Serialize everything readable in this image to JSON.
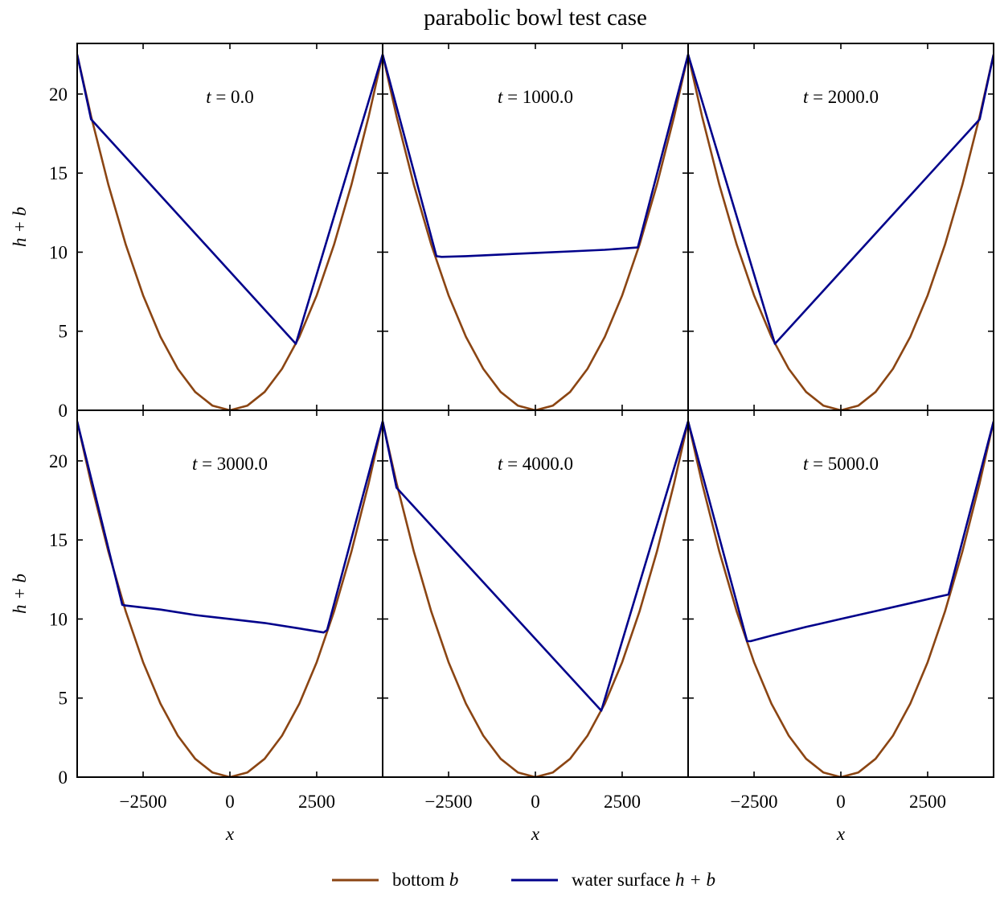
{
  "title": "parabolic bowl test case",
  "colors": {
    "bottom": "#8b4513",
    "surface": "#00008b",
    "axes": "#000000"
  },
  "chart_data": {
    "type": "line",
    "layout": "2x3 small multiples with shared axes",
    "xlabel": "x",
    "ylabel": "h + b",
    "xlim": [
      -4400,
      4400
    ],
    "ylim": [
      0,
      23.2
    ],
    "xticks": [
      -2500,
      0,
      2500
    ],
    "xtick_labels": [
      "−2500",
      "0",
      "2500"
    ],
    "yticks": [
      0,
      5,
      10,
      15,
      20
    ],
    "ytick_labels": [
      "0",
      "5",
      "10",
      "15",
      "20"
    ],
    "grid": false,
    "legend": {
      "position": "bottom-center",
      "entries": [
        {
          "key": "bottom",
          "label_main": "bottom ",
          "label_var": "b"
        },
        {
          "key": "surface",
          "label_main": "water surface ",
          "label_var": "h + b"
        }
      ]
    },
    "bottom_series": {
      "name": "bottom b",
      "x": [
        -4400,
        -4000,
        -3500,
        -3000,
        -2500,
        -2000,
        -1500,
        -1000,
        -500,
        0,
        500,
        1000,
        1500,
        2000,
        2500,
        3000,
        3500,
        4000,
        4400
      ],
      "y": [
        22.5,
        18.6,
        14.25,
        10.47,
        7.27,
        4.65,
        2.62,
        1.16,
        0.29,
        0.0,
        0.29,
        1.16,
        2.62,
        4.65,
        7.27,
        10.47,
        14.25,
        18.6,
        22.5
      ]
    },
    "panels": [
      {
        "label": "t = 0.0",
        "time": "0.0",
        "surface": {
          "x": [
            -4400,
            -4000,
            1900,
            4400
          ],
          "y": [
            22.5,
            18.4,
            4.2,
            22.5
          ]
        }
      },
      {
        "label": "t = 1000.0",
        "time": "1000.0",
        "surface": {
          "x": [
            -4400,
            -2850,
            -2700,
            -2000,
            -1000,
            0,
            1000,
            2000,
            2950,
            4400
          ],
          "y": [
            22.5,
            9.75,
            9.7,
            9.75,
            9.85,
            9.95,
            10.05,
            10.15,
            10.3,
            22.5
          ]
        }
      },
      {
        "label": "t = 2000.0",
        "time": "2000.0",
        "surface": {
          "x": [
            -4400,
            -1900,
            4000,
            4400
          ],
          "y": [
            22.5,
            4.2,
            18.4,
            22.5
          ]
        }
      },
      {
        "label": "t = 3000.0",
        "time": "3000.0",
        "surface": {
          "x": [
            -4400,
            -3100,
            -3000,
            -2000,
            -1000,
            0,
            1000,
            2000,
            2700,
            2800,
            4400
          ],
          "y": [
            22.5,
            10.9,
            10.85,
            10.6,
            10.25,
            10.0,
            9.75,
            9.4,
            9.15,
            9.3,
            22.5
          ]
        }
      },
      {
        "label": "t = 4000.0",
        "time": "4000.0",
        "surface": {
          "x": [
            -4400,
            -4000,
            1900,
            4400
          ],
          "y": [
            22.5,
            18.3,
            4.2,
            22.5
          ]
        }
      },
      {
        "label": "t = 5000.0",
        "time": "5000.0",
        "surface": {
          "x": [
            -4400,
            -2700,
            -2600,
            -2000,
            -1000,
            0,
            1000,
            2000,
            2800,
            3100,
            4400
          ],
          "y": [
            22.5,
            8.6,
            8.6,
            8.95,
            9.5,
            10.0,
            10.5,
            11.0,
            11.4,
            11.55,
            22.5
          ]
        }
      }
    ]
  }
}
